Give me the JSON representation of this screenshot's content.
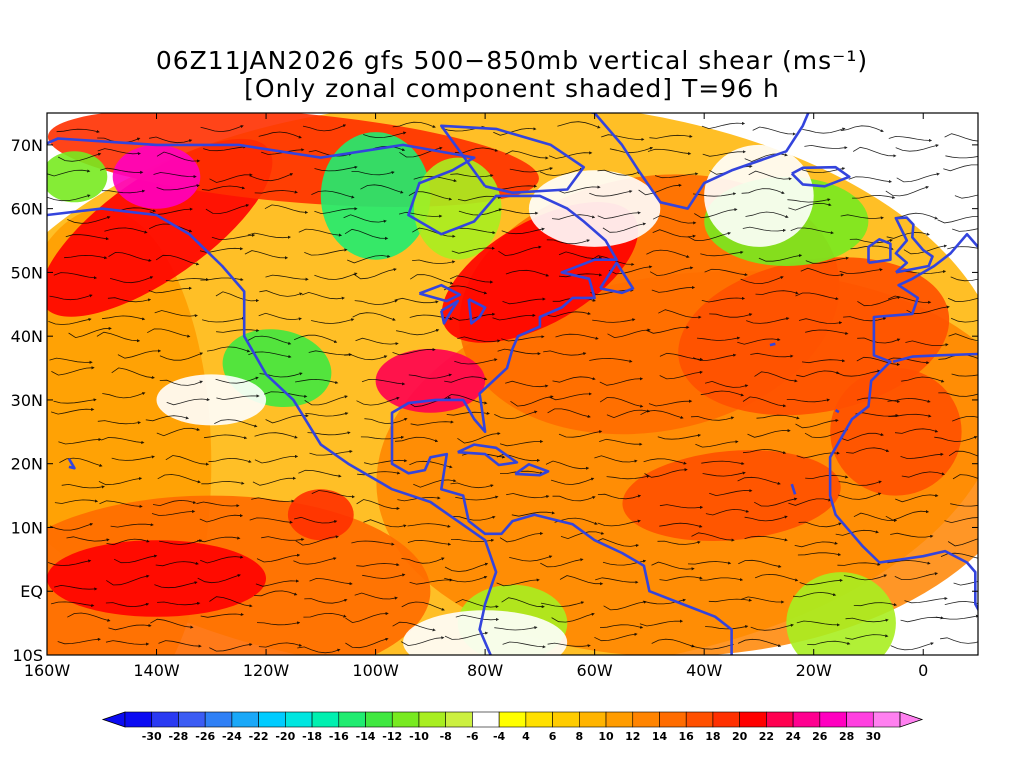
{
  "title": {
    "line1": "06Z11JAN2026 gfs 500−850mb vertical shear (ms⁻¹)",
    "line2": "[Only zonal component shaded] T=96 h"
  },
  "map": {
    "lon_range": [
      -160,
      10
    ],
    "lat_range": [
      -10,
      75
    ],
    "lon_ticks": [
      {
        "lon": -160,
        "label": "160W"
      },
      {
        "lon": -140,
        "label": "140W"
      },
      {
        "lon": -120,
        "label": "120W"
      },
      {
        "lon": -100,
        "label": "100W"
      },
      {
        "lon": -80,
        "label": "80W"
      },
      {
        "lon": -60,
        "label": "60W"
      },
      {
        "lon": -40,
        "label": "40W"
      },
      {
        "lon": -20,
        "label": "20W"
      },
      {
        "lon": 0,
        "label": "0"
      }
    ],
    "lat_ticks": [
      {
        "lat": -10,
        "label": "10S"
      },
      {
        "lat": 0,
        "label": "EQ"
      },
      {
        "lat": 10,
        "label": "10N"
      },
      {
        "lat": 20,
        "label": "20N"
      },
      {
        "lat": 30,
        "label": "30N"
      },
      {
        "lat": 40,
        "label": "40N"
      },
      {
        "lat": 50,
        "label": "50N"
      },
      {
        "lat": 60,
        "label": "60N"
      },
      {
        "lat": 70,
        "label": "70N"
      }
    ],
    "coast_color": "#3344dd",
    "streamline_color": "#000000"
  },
  "colorbar": {
    "labels": [
      "-30",
      "-28",
      "-26",
      "-24",
      "-22",
      "-20",
      "-18",
      "-16",
      "-14",
      "-12",
      "-10",
      "-8",
      "-6",
      "-4",
      "4",
      "6",
      "8",
      "10",
      "12",
      "14",
      "16",
      "18",
      "20",
      "22",
      "24",
      "26",
      "28",
      "30"
    ],
    "colors": [
      "#0b0bf2",
      "#2a3af2",
      "#3b5cf4",
      "#2f80f6",
      "#1aa8f8",
      "#00ccff",
      "#00e6e0",
      "#00f0b0",
      "#20ec70",
      "#40e840",
      "#78ea20",
      "#a8ee20",
      "#ccf040",
      "#ffffff",
      "#ffff00",
      "#ffe000",
      "#ffcc00",
      "#ffb400",
      "#ff9c00",
      "#ff8400",
      "#ff6c00",
      "#ff5000",
      "#ff3000",
      "#ff0000",
      "#ff0050",
      "#ff0090",
      "#ff00c0",
      "#ff40e0",
      "#ff80f0"
    ],
    "underflow_color": "#0b0bf2",
    "overflow_color": "#ff80f0"
  }
}
